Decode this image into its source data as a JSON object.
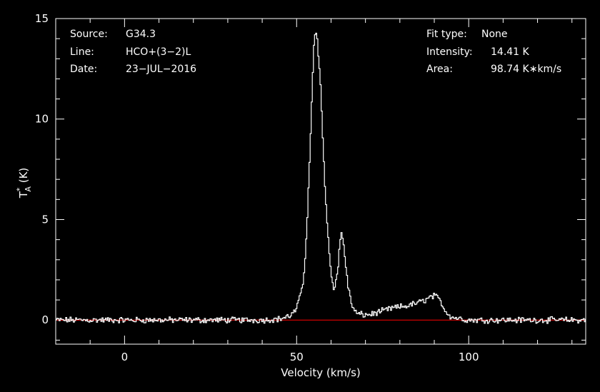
{
  "info": {
    "source_label": "Source:",
    "source_value": "G34.3",
    "line_label": "Line:",
    "line_value": "HCO+(3−2)L",
    "date_label": "Date:",
    "date_value": "23−JUL−2016",
    "fit_label": "Fit type:",
    "fit_value": "None",
    "intensity_label": "Intensity:",
    "intensity_value": "14.41 K",
    "area_label": "Area:",
    "area_value": "98.74 K∗km/s"
  },
  "colors": {
    "background": "#000000",
    "axes": "#ffffff",
    "spectrum": "#ffffff",
    "baseline": "#ff0000"
  },
  "chart_data": {
    "type": "line",
    "xlabel": "Velocity (km/s)",
    "ylabel_main": "T",
    "ylabel_sup": "*",
    "ylabel_sub": "A",
    "ylabel_unit": " (K)",
    "xlim": [
      -20,
      134
    ],
    "ylim": [
      -1.2,
      15
    ],
    "xticks": [
      {
        "value": 0,
        "label": "0"
      },
      {
        "value": 50,
        "label": "50"
      },
      {
        "value": 100,
        "label": "100"
      }
    ],
    "yticks": [
      {
        "value": 0,
        "label": "0"
      },
      {
        "value": 5,
        "label": "5"
      },
      {
        "value": 10,
        "label": "10"
      },
      {
        "value": 15,
        "label": "15"
      }
    ],
    "baseline": 0,
    "grid": false,
    "series": [
      {
        "x": [
          -20,
          -10,
          0,
          10,
          20,
          30,
          40,
          45,
          48,
          50,
          52,
          53,
          54,
          55,
          55.5,
          56,
          57,
          58,
          59,
          60,
          61,
          62,
          62.5,
          63,
          63.5,
          64,
          65,
          66,
          67,
          68,
          70,
          72,
          74,
          76,
          78,
          80,
          82,
          84,
          86,
          88,
          89,
          90,
          91,
          92,
          93,
          95,
          100,
          110,
          120,
          134
        ],
        "y": [
          0,
          0,
          0,
          0,
          0,
          0,
          0,
          0.05,
          0.2,
          0.5,
          2.0,
          4.5,
          9.0,
          13.5,
          14.41,
          14.0,
          11.5,
          7.5,
          4.5,
          2.3,
          1.5,
          2.5,
          3.8,
          4.3,
          4.0,
          3.2,
          1.6,
          0.8,
          0.4,
          0.3,
          0.25,
          0.3,
          0.4,
          0.5,
          0.6,
          0.65,
          0.7,
          0.8,
          0.9,
          1.05,
          1.15,
          1.2,
          1.1,
          0.9,
          0.5,
          0.15,
          0,
          0,
          0,
          0
        ]
      }
    ]
  }
}
